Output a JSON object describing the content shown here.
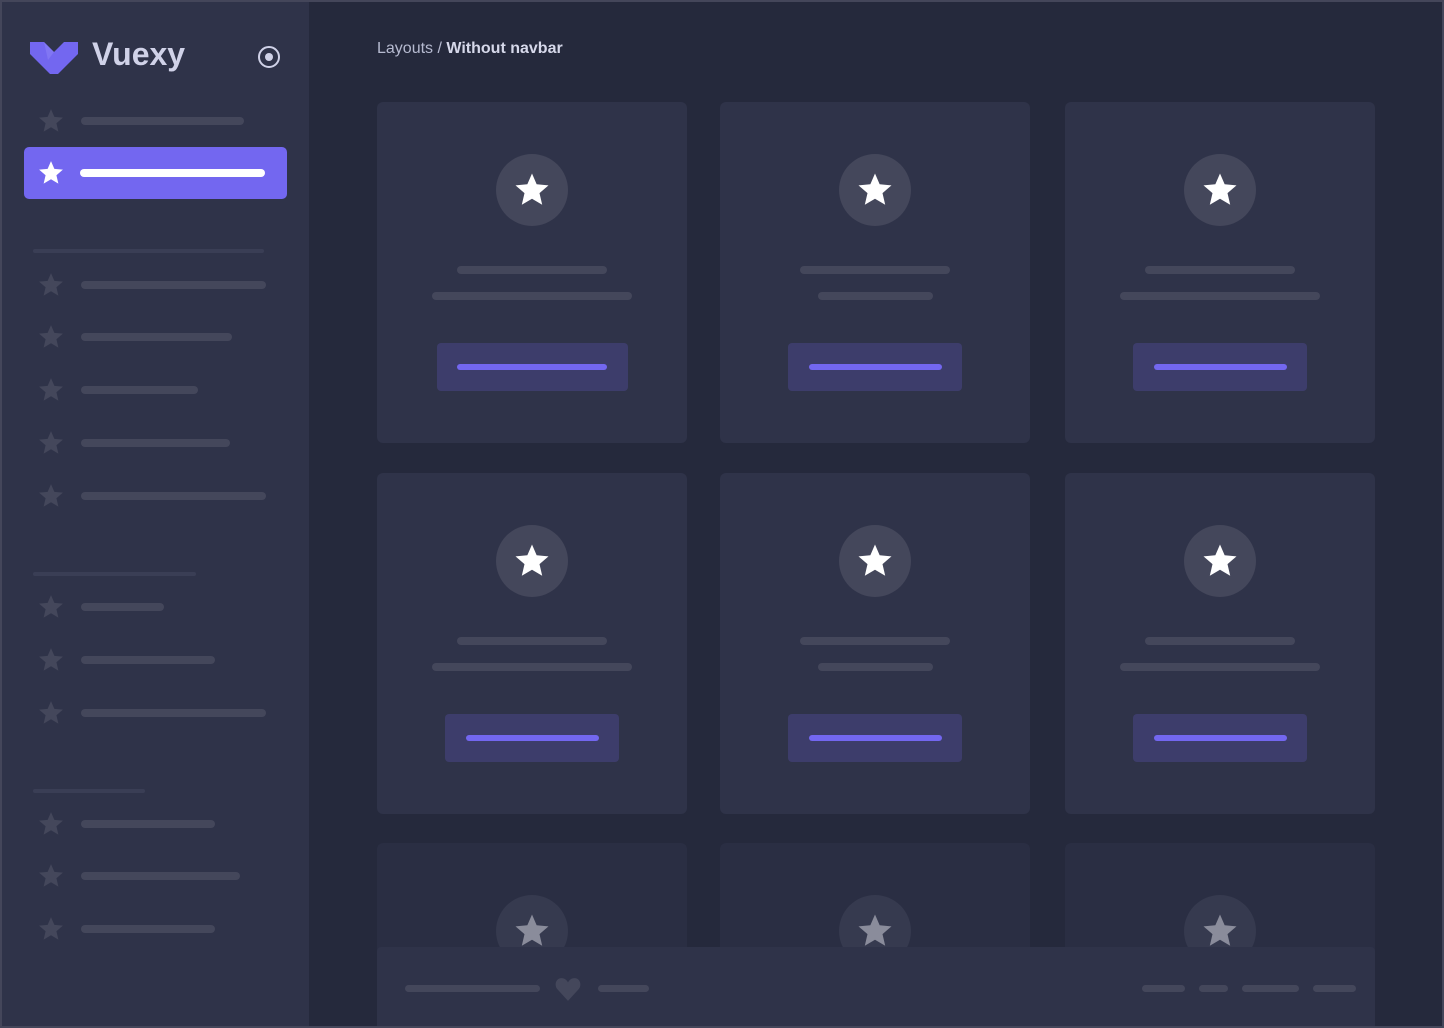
{
  "sidebar": {
    "brand": "Vuexy",
    "brand_color": "#7367f0",
    "active_color": "#7367f0",
    "toggle_icon": "radio-circle-icon",
    "item_icon": "star-icon"
  },
  "breadcrumb": {
    "parent": "Layouts",
    "separator": " / ",
    "current": "Without navbar"
  },
  "cards": {
    "icon": "star-icon",
    "button_color": "#3d3d6b",
    "button_line_color": "#7367f0"
  },
  "footer": {
    "icon": "heart-icon"
  }
}
